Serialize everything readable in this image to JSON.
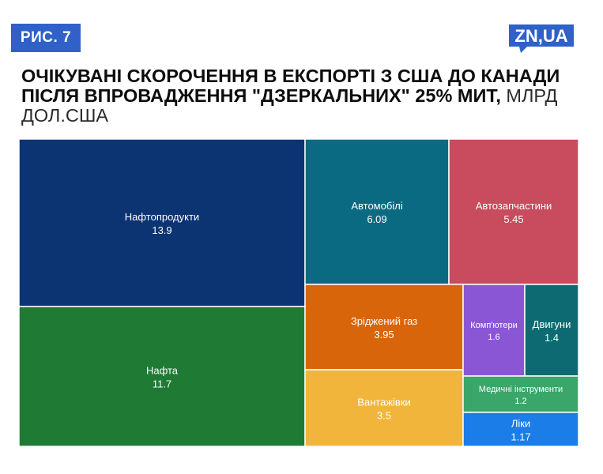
{
  "figure_label": "РИС. 7",
  "logo_text": "ZN,UA",
  "title": {
    "bold": "ОЧІКУВАНІ СКОРОЧЕННЯ В ЕКСПОРТІ З США ДО КАНАДИ ПІСЛЯ ВПРОВАДЖЕННЯ \"ДЗЕРКАЛЬНИХ\" 25% МИТ,",
    "unit": " МЛРД ДОЛ.США"
  },
  "colors": {
    "badge": "#2f61c8",
    "logo": "#2f61c8"
  },
  "chart_data": {
    "type": "treemap",
    "value_format": "decimal point",
    "items": [
      {
        "label": "Нафтопродукти",
        "value": 13.9,
        "color": "#0c3372"
      },
      {
        "label": "Нафта",
        "value": 11.7,
        "color": "#1f7a34"
      },
      {
        "label": "Автомобілі",
        "value": 6.09,
        "color": "#0a6a82"
      },
      {
        "label": "Автозапчастини",
        "value": 5.45,
        "color": "#c94b5e"
      },
      {
        "label": "Зріджений газ",
        "value": 3.95,
        "color": "#d9650a"
      },
      {
        "label": "Вантажівки",
        "value": 3.5,
        "color": "#f2b53b"
      },
      {
        "label": "Комп'ютери",
        "value": 1.6,
        "color": "#8a56d6"
      },
      {
        "label": "Двигуни",
        "value": 1.4,
        "color": "#0d6a72"
      },
      {
        "label": "Медичні інструменти",
        "value": 1.2,
        "color": "#3aa66a"
      },
      {
        "label": "Ліки",
        "value": 1.17,
        "color": "#1a7de8"
      }
    ]
  }
}
